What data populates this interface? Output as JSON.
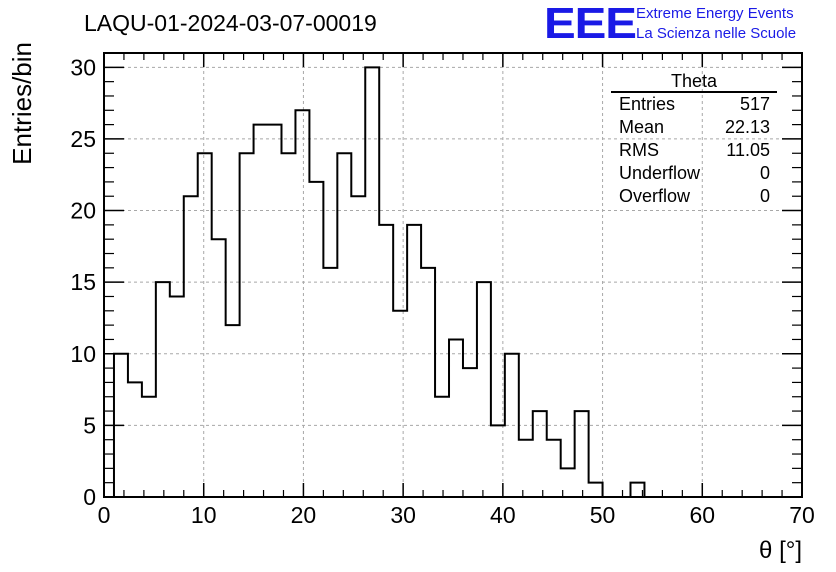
{
  "title": "LAQU-01-2024-03-07-00019",
  "logo": {
    "mark": "EEE",
    "line1": "Extreme Energy Events",
    "line2": "La Scienza nelle Scuole",
    "color": "#1a1ae6"
  },
  "stats": {
    "name": "Theta",
    "rows": [
      {
        "label": "Entries",
        "value": "517"
      },
      {
        "label": "Mean",
        "value": "22.13"
      },
      {
        "label": "RMS",
        "value": "11.05"
      },
      {
        "label": "Underflow",
        "value": "0"
      },
      {
        "label": "Overflow",
        "value": "0"
      }
    ]
  },
  "chart_data": {
    "type": "bar",
    "histogram": true,
    "title": "LAQU-01-2024-03-07-00019",
    "xlabel": "θ [°]",
    "ylabel": "Entries/bin",
    "xlim": [
      0,
      70
    ],
    "ylim": [
      0,
      31
    ],
    "xticks": [
      0,
      10,
      20,
      30,
      40,
      50,
      60,
      70
    ],
    "yticks": [
      0,
      5,
      10,
      15,
      20,
      25,
      30
    ],
    "grid": true,
    "bin_width": 1.4,
    "x": [
      1.0,
      2.4,
      3.8,
      5.2,
      6.6,
      8.0,
      9.4,
      10.8,
      12.2,
      13.6,
      15.0,
      16.4,
      17.8,
      19.2,
      20.6,
      22.0,
      23.4,
      24.8,
      26.2,
      27.6,
      29.0,
      30.4,
      31.8,
      33.2,
      34.6,
      36.0,
      37.4,
      38.8,
      40.2,
      41.6,
      43.0,
      44.4,
      45.8,
      47.2,
      48.6,
      50.0,
      51.4,
      52.8
    ],
    "values": [
      10,
      8,
      7,
      15,
      14,
      21,
      24,
      18,
      12,
      24,
      26,
      26,
      24,
      27,
      22,
      16,
      24,
      21,
      30,
      19,
      13,
      19,
      16,
      7,
      11,
      9,
      15,
      5,
      10,
      4,
      6,
      4,
      2,
      6,
      1,
      0,
      0,
      1
    ],
    "line_color": "#000000"
  }
}
